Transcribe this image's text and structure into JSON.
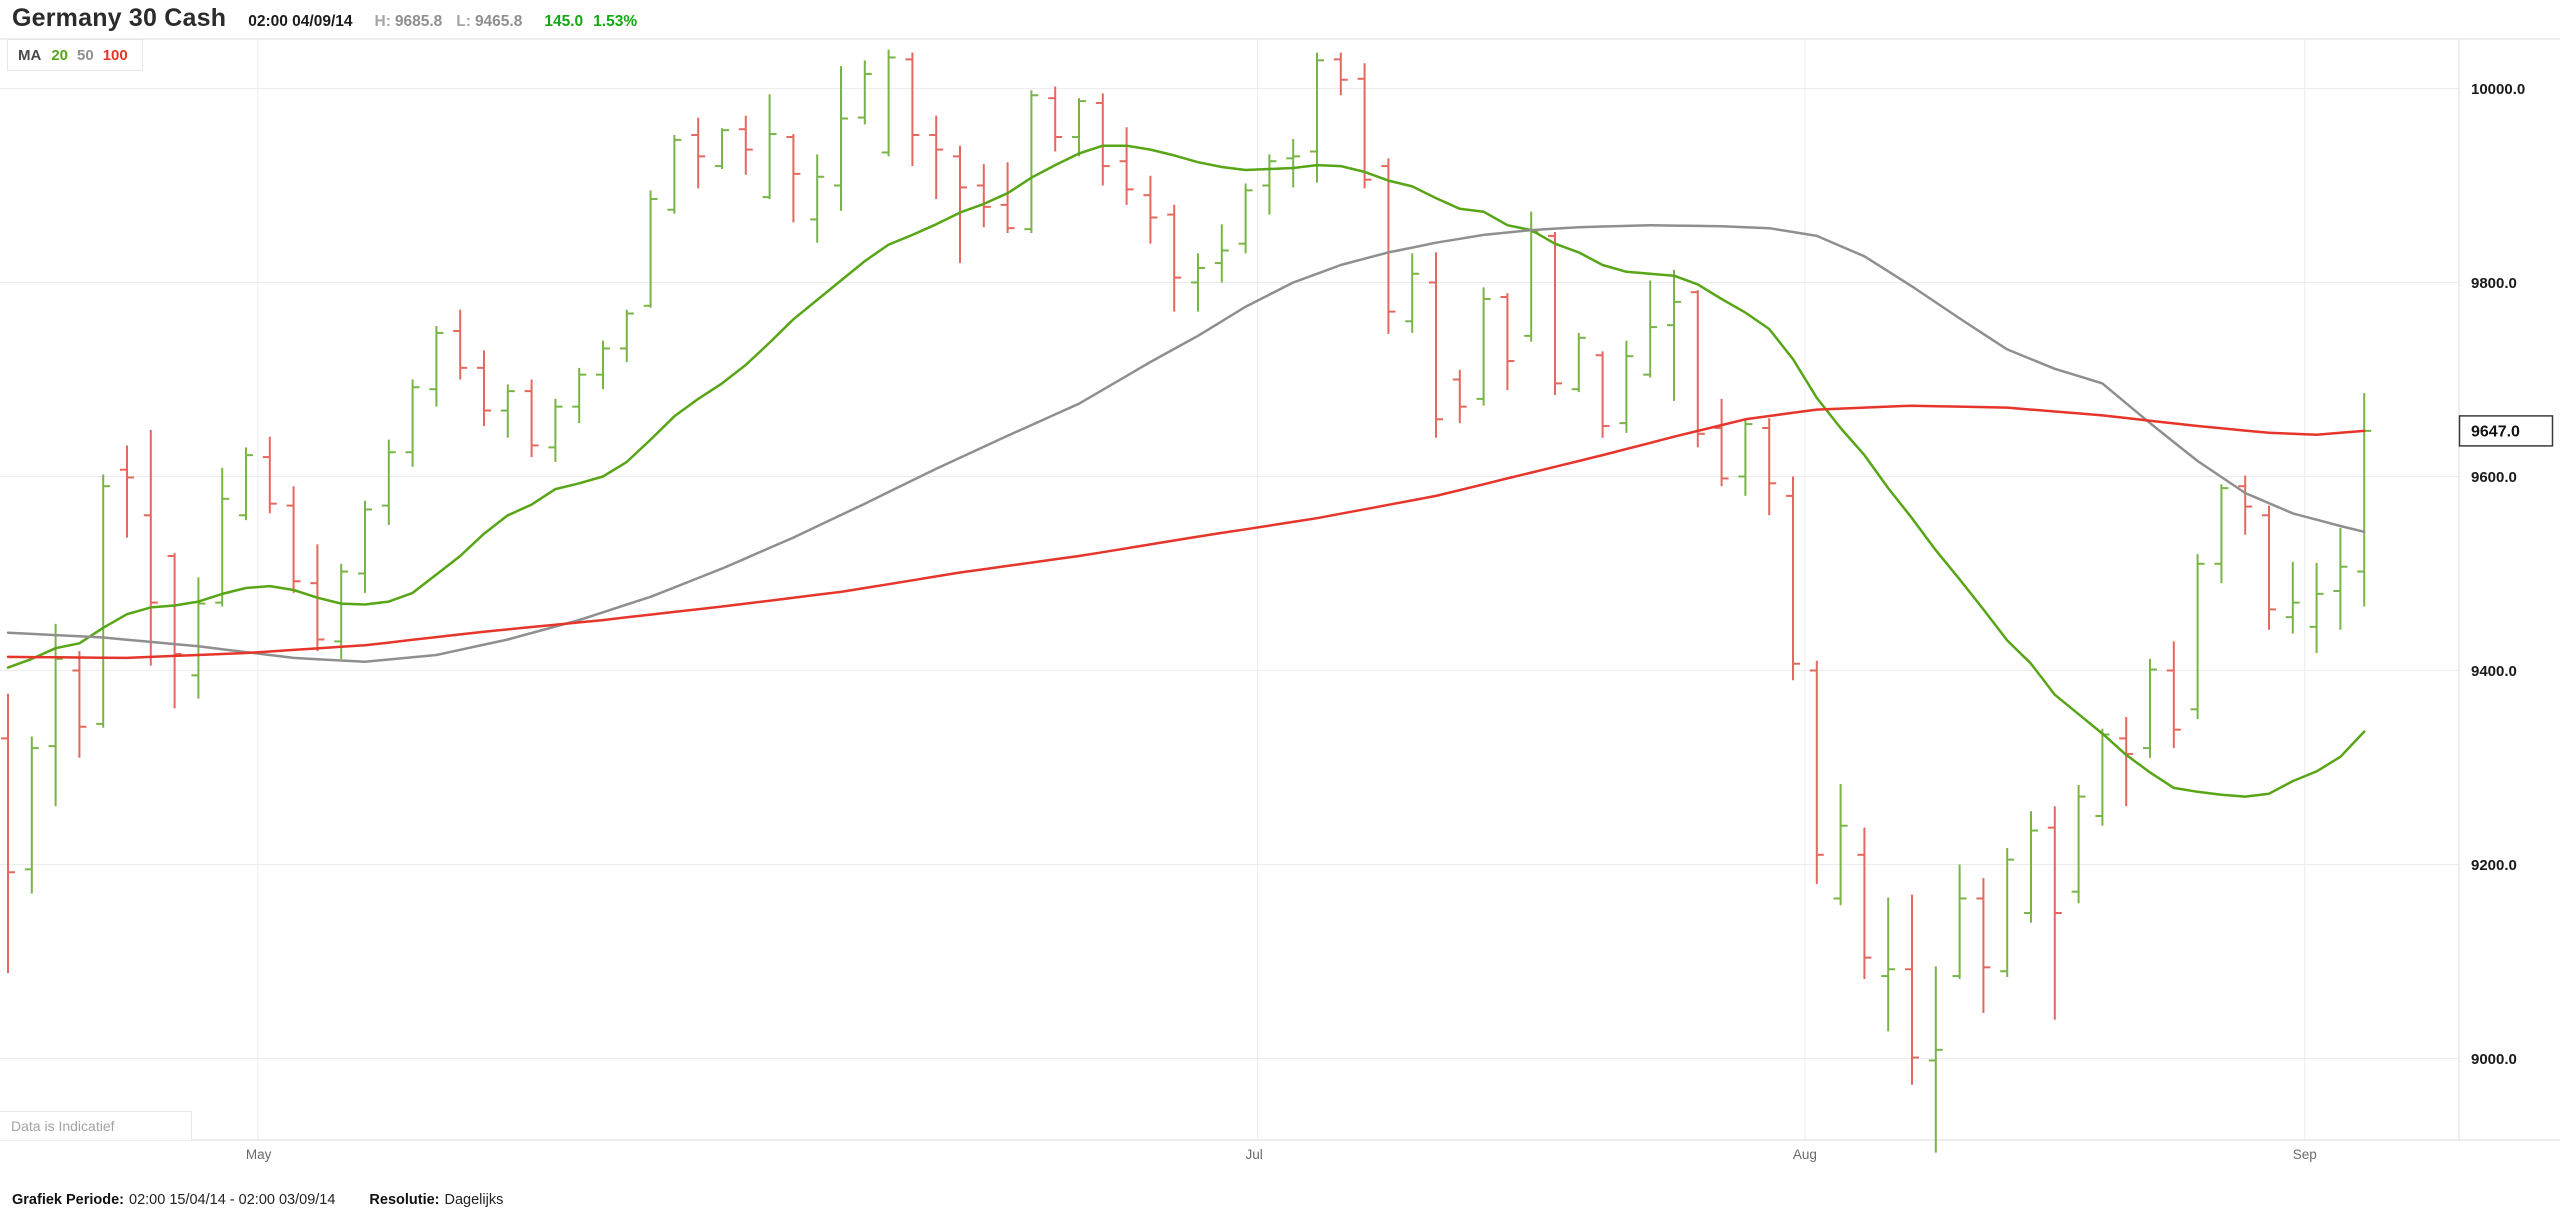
{
  "header": {
    "title": "Germany 30 Cash",
    "timestamp": "02:00 04/09/14",
    "high_label": "H:",
    "high_value": "9685.8",
    "low_label": "L:",
    "low_value": "9465.8",
    "change_value": "145.0",
    "change_pct": "1.53%"
  },
  "legend": {
    "label": "MA",
    "periods": [
      "20",
      "50",
      "100"
    ]
  },
  "watermark": "Data is Indicatief",
  "footer": {
    "period_label": "Grafiek Periode:",
    "period_value": "02:00 15/04/14 - 02:00 03/09/14",
    "resolution_label": "Resolutie:",
    "resolution_value": "Dagelijks"
  },
  "colors": {
    "bar_up": "#78b446",
    "bar_down": "#e4685e",
    "ma20": "#58a517",
    "ma50": "#8f8f8f",
    "ma100": "#e6352b",
    "grid": "#ececec",
    "border": "#dcdcdc",
    "change_green": "#12a912",
    "pricebox_border": "#3a3a3a"
  },
  "chart_data": {
    "type": "bar",
    "subtype": "ohlc-bars",
    "title": "Germany 30 Cash",
    "grid": true,
    "legend_position": "top-left",
    "y_axis": {
      "ticks": [
        10000,
        9800,
        9600,
        9400,
        9200,
        9000
      ],
      "tick_suffix": ".0",
      "price_at_plot_top": 10051,
      "price_at_plot_bottom": 8916
    },
    "x_axis": {
      "labels": [
        "May",
        "Jul",
        "Aug",
        "Sep"
      ],
      "separator_bar_index": [
        10.5,
        52.5,
        75.5,
        96.5
      ]
    },
    "last_price": 9647.0,
    "last_price_label": "9647.0",
    "series": {
      "ohlc": [
        [
          9330,
          9376,
          9088,
          9192
        ],
        [
          9195,
          9332,
          9170,
          9320
        ],
        [
          9322,
          9448,
          9260,
          9412
        ],
        [
          9400,
          9420,
          9310,
          9342
        ],
        [
          9345,
          9602,
          9341,
          9590
        ],
        [
          9607,
          9632,
          9537,
          9599
        ],
        [
          9560,
          9648,
          9405,
          9470
        ],
        [
          9518,
          9521,
          9361,
          9417
        ],
        [
          9395,
          9496,
          9371,
          9469
        ],
        [
          9470,
          9609,
          9466,
          9577
        ],
        [
          9560,
          9630,
          9555,
          9622
        ],
        [
          9620,
          9641,
          9562,
          9572
        ],
        [
          9570,
          9590,
          9480,
          9492
        ],
        [
          9490,
          9530,
          9420,
          9432
        ],
        [
          9430,
          9510,
          9412,
          9502
        ],
        [
          9500,
          9575,
          9480,
          9566
        ],
        [
          9570,
          9638,
          9550,
          9625
        ],
        [
          9625,
          9700,
          9610,
          9692
        ],
        [
          9690,
          9755,
          9672,
          9748
        ],
        [
          9750,
          9772,
          9700,
          9712
        ],
        [
          9712,
          9730,
          9652,
          9668
        ],
        [
          9668,
          9695,
          9640,
          9688
        ],
        [
          9688,
          9700,
          9620,
          9632
        ],
        [
          9630,
          9680,
          9615,
          9672
        ],
        [
          9672,
          9712,
          9655,
          9705
        ],
        [
          9705,
          9740,
          9690,
          9732
        ],
        [
          9732,
          9772,
          9718,
          9768
        ],
        [
          9776,
          9895,
          9774,
          9886
        ],
        [
          9875,
          9952,
          9871,
          9947
        ],
        [
          9952,
          9970,
          9897,
          9930
        ],
        [
          9920,
          9959,
          9917,
          9957
        ],
        [
          9958,
          9972,
          9911,
          9937
        ],
        [
          9888,
          9994,
          9886,
          9953
        ],
        [
          9950,
          9953,
          9862,
          9912
        ],
        [
          9865,
          9932,
          9841,
          9909
        ],
        [
          9900,
          10023,
          9874,
          9969
        ],
        [
          9970,
          10029,
          9963,
          10015
        ],
        [
          9934,
          10040,
          9930,
          10032
        ],
        [
          10030,
          10037,
          9920,
          9952
        ],
        [
          9952,
          9972,
          9886,
          9937
        ],
        [
          9930,
          9941,
          9820,
          9898
        ],
        [
          9900,
          9922,
          9857,
          9878
        ],
        [
          9880,
          9924,
          9851,
          9856
        ],
        [
          9855,
          9998,
          9851,
          9993
        ],
        [
          9990,
          10002,
          9935,
          9950
        ],
        [
          9950,
          9990,
          9930,
          9987
        ],
        [
          9985,
          9995,
          9900,
          9920
        ],
        [
          9925,
          9960,
          9880,
          9896
        ],
        [
          9890,
          9910,
          9840,
          9867
        ],
        [
          9870,
          9880,
          9770,
          9805
        ],
        [
          9800,
          9830,
          9770,
          9815
        ],
        [
          9820,
          9860,
          9800,
          9833
        ],
        [
          9840,
          9902,
          9830,
          9895
        ],
        [
          9900,
          9932,
          9870,
          9925
        ],
        [
          9928,
          9948,
          9898,
          9930
        ],
        [
          9935,
          10037,
          9903,
          10029
        ],
        [
          10030,
          10037,
          9993,
          10009
        ],
        [
          10010,
          10026,
          9897,
          9906
        ],
        [
          9920,
          9928,
          9747,
          9770
        ],
        [
          9760,
          9830,
          9748,
          9809
        ],
        [
          9800,
          9831,
          9640,
          9659
        ],
        [
          9700,
          9710,
          9655,
          9672
        ],
        [
          9680,
          9795,
          9673,
          9783
        ],
        [
          9785,
          9789,
          9689,
          9719
        ],
        [
          9745,
          9873,
          9739,
          9852
        ],
        [
          9848,
          9852,
          9684,
          9696
        ],
        [
          9690,
          9748,
          9687,
          9743
        ],
        [
          9725,
          9729,
          9640,
          9652
        ],
        [
          9655,
          9740,
          9645,
          9724
        ],
        [
          9705,
          9802,
          9702,
          9754
        ],
        [
          9756,
          9813,
          9678,
          9780
        ],
        [
          9790,
          9792,
          9630,
          9644
        ],
        [
          9650,
          9680,
          9590,
          9598
        ],
        [
          9600,
          9660,
          9580,
          9654
        ],
        [
          9650,
          9660,
          9560,
          9593
        ],
        [
          9580,
          9600,
          9390,
          9407
        ],
        [
          9400,
          9410,
          9180,
          9210
        ],
        [
          9165,
          9283,
          9158,
          9240
        ],
        [
          9210,
          9238,
          9082,
          9104
        ],
        [
          9085,
          9166,
          9028,
          9092
        ],
        [
          9092,
          9169,
          8973,
          9001
        ],
        [
          8998,
          9095,
          8903,
          9009
        ],
        [
          9085,
          9200,
          9082,
          9165
        ],
        [
          9165,
          9186,
          9047,
          9094
        ],
        [
          9090,
          9217,
          9084,
          9205
        ],
        [
          9150,
          9255,
          9140,
          9235
        ],
        [
          9238,
          9260,
          9040,
          9150
        ],
        [
          9172,
          9282,
          9160,
          9270
        ],
        [
          9250,
          9340,
          9240,
          9334
        ],
        [
          9330,
          9352,
          9260,
          9314
        ],
        [
          9320,
          9412,
          9310,
          9401
        ],
        [
          9400,
          9430,
          9320,
          9339
        ],
        [
          9360,
          9520,
          9350,
          9510
        ],
        [
          9510,
          9592,
          9490,
          9588
        ],
        [
          9590,
          9601,
          9540,
          9569
        ],
        [
          9560,
          9570,
          9442,
          9463
        ],
        [
          9455,
          9512,
          9438,
          9470
        ],
        [
          9445,
          9511,
          9418,
          9479
        ],
        [
          9482,
          9547,
          9442,
          9507
        ],
        [
          9502,
          9686,
          9466,
          9647
        ]
      ],
      "ma20": {
        "name": "MA 20",
        "period": 20,
        "values": [
          9403,
          9412,
          9423,
          9428,
          9444,
          9458,
          9465,
          9467,
          9471,
          9479,
          9485,
          9487,
          9483,
          9475,
          9469,
          9468,
          9471,
          9480,
          9499,
          9518,
          9541,
          9560,
          9571,
          9587,
          9593,
          9600,
          9615,
          9638,
          9662,
          9680,
          9696,
          9715,
          9738,
          9762,
          9782,
          9802,
          9822,
          9839,
          9849,
          9860,
          9872,
          9881,
          9892,
          9908,
          9921,
          9933,
          9941,
          9941,
          9937,
          9931,
          9924,
          9919,
          9916,
          9917,
          9918,
          9921,
          9920,
          9914,
          9905,
          9899,
          9887,
          9876,
          9873,
          9859,
          9854,
          9840,
          9831,
          9818,
          9811,
          9809,
          9807,
          9798,
          9783,
          9769,
          9752,
          9721,
          9681,
          9650,
          9622,
          9588,
          9557,
          9524,
          9494,
          9463,
          9431,
          9407,
          9375,
          9355,
          9335,
          9313,
          9295,
          9279,
          9275,
          9272,
          9270,
          9273,
          9286,
          9296,
          9311,
          9337
        ]
      },
      "ma50": {
        "name": "MA 50",
        "period": 50,
        "points": [
          [
            0,
            9439
          ],
          [
            4,
            9434
          ],
          [
            8,
            9425
          ],
          [
            12,
            9413
          ],
          [
            15,
            9409
          ],
          [
            18,
            9416
          ],
          [
            21,
            9432
          ],
          [
            24,
            9452
          ],
          [
            27,
            9476
          ],
          [
            30,
            9505
          ],
          [
            33,
            9537
          ],
          [
            36,
            9572
          ],
          [
            39,
            9608
          ],
          [
            42,
            9642
          ],
          [
            45,
            9675
          ],
          [
            48,
            9718
          ],
          [
            50,
            9745
          ],
          [
            52,
            9775
          ],
          [
            54,
            9800
          ],
          [
            56,
            9818
          ],
          [
            58,
            9831
          ],
          [
            60,
            9841
          ],
          [
            62,
            9849
          ],
          [
            64,
            9854
          ],
          [
            66,
            9857
          ],
          [
            69,
            9859
          ],
          [
            72,
            9858
          ],
          [
            74,
            9856
          ],
          [
            76,
            9848
          ],
          [
            78,
            9827
          ],
          [
            80,
            9796
          ],
          [
            82,
            9763
          ],
          [
            84,
            9731
          ],
          [
            86,
            9711
          ],
          [
            88,
            9696
          ],
          [
            90,
            9655
          ],
          [
            92,
            9616
          ],
          [
            94,
            9583
          ],
          [
            96,
            9562
          ],
          [
            98,
            9549
          ],
          [
            99,
            9543
          ]
        ]
      },
      "ma100": {
        "name": "MA 100",
        "period": 100,
        "points": [
          [
            0,
            9414
          ],
          [
            5,
            9413
          ],
          [
            10,
            9418
          ],
          [
            15,
            9426
          ],
          [
            20,
            9440
          ],
          [
            25,
            9452
          ],
          [
            30,
            9466
          ],
          [
            35,
            9481
          ],
          [
            40,
            9501
          ],
          [
            45,
            9518
          ],
          [
            50,
            9538
          ],
          [
            55,
            9557
          ],
          [
            60,
            9580
          ],
          [
            64,
            9604
          ],
          [
            67,
            9622
          ],
          [
            70,
            9641
          ],
          [
            73,
            9659
          ],
          [
            76,
            9669
          ],
          [
            80,
            9673
          ],
          [
            84,
            9671
          ],
          [
            88,
            9663
          ],
          [
            92,
            9652
          ],
          [
            95,
            9645
          ],
          [
            97,
            9643
          ],
          [
            99,
            9647
          ]
        ]
      }
    }
  }
}
